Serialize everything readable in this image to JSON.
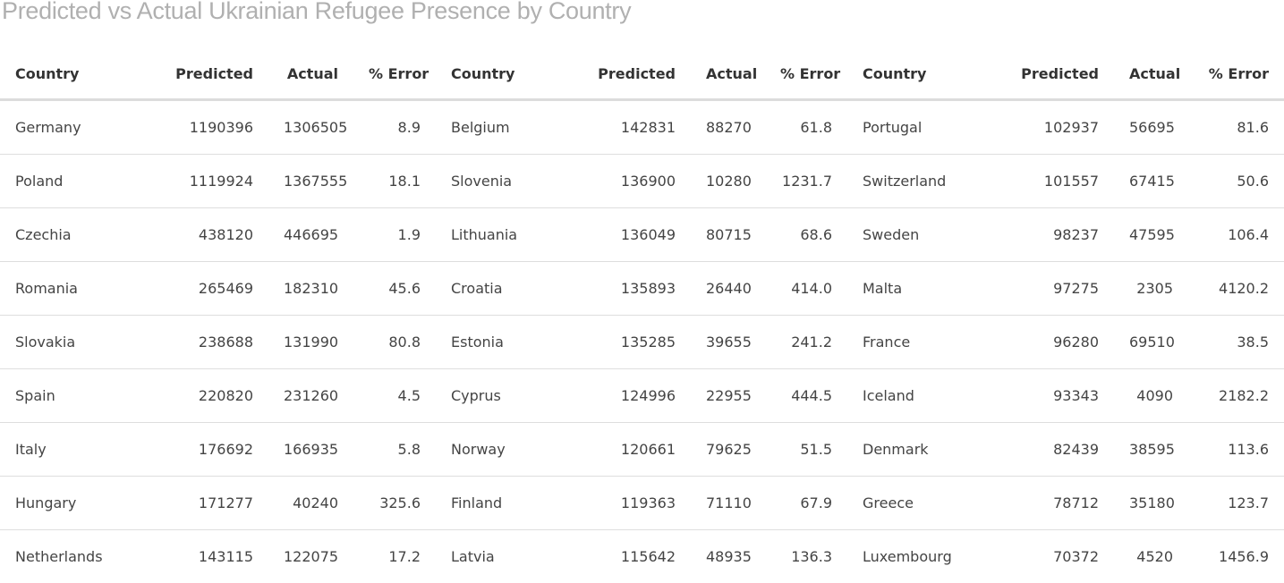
{
  "title": "Predicted vs Actual Ukrainian Refugee Presence by Country",
  "headers": {
    "country": "Country",
    "predicted": "Predicted",
    "actual": "Actual",
    "error": "% Error"
  },
  "rows": [
    [
      [
        "Germany",
        "1190396",
        "1306505",
        "8.9"
      ],
      [
        "Belgium",
        "142831",
        "88270",
        "61.8"
      ],
      [
        "Portugal",
        "102937",
        "56695",
        "81.6"
      ]
    ],
    [
      [
        "Poland",
        "1119924",
        "1367555",
        "18.1"
      ],
      [
        "Slovenia",
        "136900",
        "10280",
        "1231.7"
      ],
      [
        "Switzerland",
        "101557",
        "67415",
        "50.6"
      ]
    ],
    [
      [
        "Czechia",
        "438120",
        "446695",
        "1.9"
      ],
      [
        "Lithuania",
        "136049",
        "80715",
        "68.6"
      ],
      [
        "Sweden",
        "98237",
        "47595",
        "106.4"
      ]
    ],
    [
      [
        "Romania",
        "265469",
        "182310",
        "45.6"
      ],
      [
        "Croatia",
        "135893",
        "26440",
        "414.0"
      ],
      [
        "Malta",
        "97275",
        "2305",
        "4120.2"
      ]
    ],
    [
      [
        "Slovakia",
        "238688",
        "131990",
        "80.8"
      ],
      [
        "Estonia",
        "135285",
        "39655",
        "241.2"
      ],
      [
        "France",
        "96280",
        "69510",
        "38.5"
      ]
    ],
    [
      [
        "Spain",
        "220820",
        "231260",
        "4.5"
      ],
      [
        "Cyprus",
        "124996",
        "22955",
        "444.5"
      ],
      [
        "Iceland",
        "93343",
        "4090",
        "2182.2"
      ]
    ],
    [
      [
        "Italy",
        "176692",
        "166935",
        "5.8"
      ],
      [
        "Norway",
        "120661",
        "79625",
        "51.5"
      ],
      [
        "Denmark",
        "82439",
        "38595",
        "113.6"
      ]
    ],
    [
      [
        "Hungary",
        "171277",
        "40240",
        "325.6"
      ],
      [
        "Finland",
        "119363",
        "71110",
        "67.9"
      ],
      [
        "Greece",
        "78712",
        "35180",
        "123.7"
      ]
    ],
    [
      [
        "Netherlands",
        "143115",
        "122075",
        "17.2"
      ],
      [
        "Latvia",
        "115642",
        "48935",
        "136.3"
      ],
      [
        "Luxembourg",
        "70372",
        "4520",
        "1456.9"
      ]
    ]
  ],
  "chart_data": {
    "type": "table",
    "title": "Predicted vs Actual Ukrainian Refugee Presence by Country",
    "columns": [
      "Country",
      "Predicted",
      "Actual",
      "% Error"
    ],
    "records": [
      [
        "Germany",
        1190396,
        1306505,
        8.9
      ],
      [
        "Poland",
        1119924,
        1367555,
        18.1
      ],
      [
        "Czechia",
        438120,
        446695,
        1.9
      ],
      [
        "Romania",
        265469,
        182310,
        45.6
      ],
      [
        "Slovakia",
        238688,
        131990,
        80.8
      ],
      [
        "Spain",
        220820,
        231260,
        4.5
      ],
      [
        "Italy",
        176692,
        166935,
        5.8
      ],
      [
        "Hungary",
        171277,
        40240,
        325.6
      ],
      [
        "Netherlands",
        143115,
        122075,
        17.2
      ],
      [
        "Belgium",
        142831,
        88270,
        61.8
      ],
      [
        "Slovenia",
        136900,
        10280,
        1231.7
      ],
      [
        "Lithuania",
        136049,
        80715,
        68.6
      ],
      [
        "Croatia",
        135893,
        26440,
        414.0
      ],
      [
        "Estonia",
        135285,
        39655,
        241.2
      ],
      [
        "Cyprus",
        124996,
        22955,
        444.5
      ],
      [
        "Norway",
        120661,
        79625,
        51.5
      ],
      [
        "Finland",
        119363,
        71110,
        67.9
      ],
      [
        "Latvia",
        115642,
        48935,
        136.3
      ],
      [
        "Portugal",
        102937,
        56695,
        81.6
      ],
      [
        "Switzerland",
        101557,
        67415,
        50.6
      ],
      [
        "Sweden",
        98237,
        47595,
        106.4
      ],
      [
        "Malta",
        97275,
        2305,
        4120.2
      ],
      [
        "France",
        96280,
        69510,
        38.5
      ],
      [
        "Iceland",
        93343,
        4090,
        2182.2
      ],
      [
        "Denmark",
        82439,
        38595,
        113.6
      ],
      [
        "Greece",
        78712,
        35180,
        123.7
      ],
      [
        "Luxembourg",
        70372,
        4520,
        1456.9
      ]
    ]
  }
}
